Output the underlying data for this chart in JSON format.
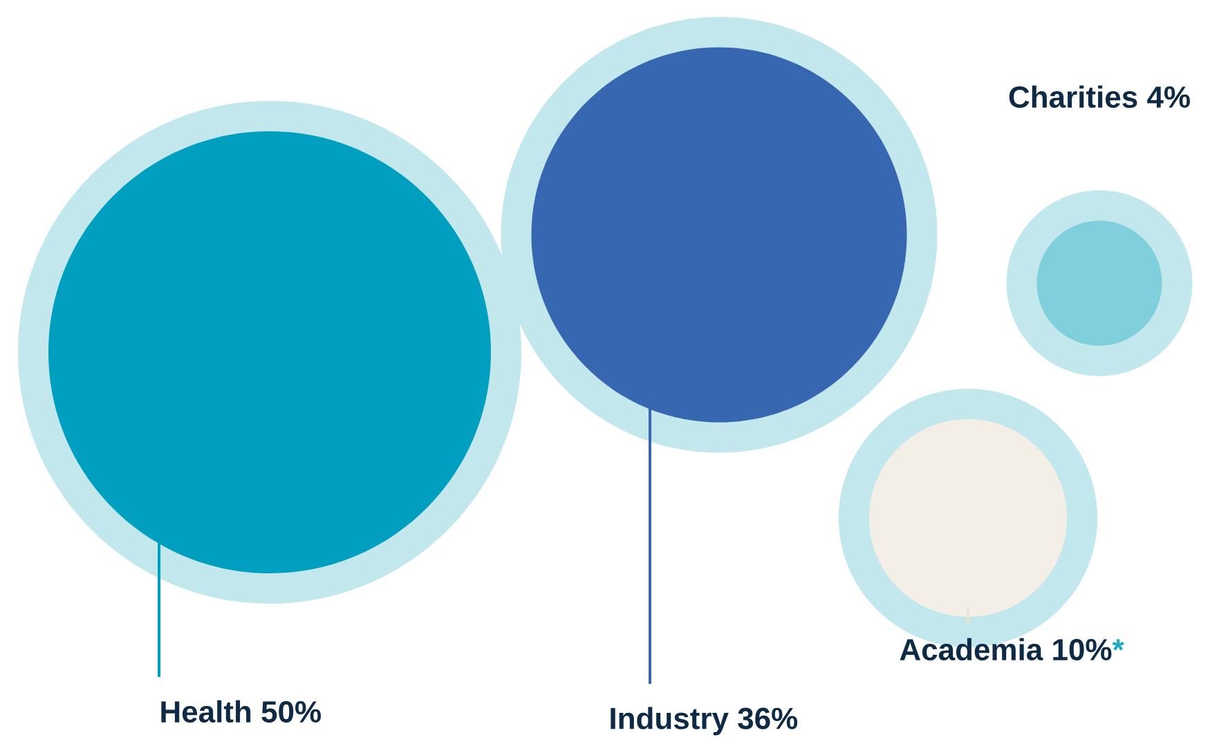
{
  "chart_data": {
    "type": "other",
    "categories": [
      "Health",
      "Industry",
      "Academia",
      "Charities"
    ],
    "values": [
      50,
      36,
      10,
      4
    ],
    "value_labels": [
      "50%",
      "36%",
      "10%",
      "4%"
    ],
    "colors": [
      "#009fbf",
      "#3767b0",
      "#f3efe7",
      "#7fcfdd"
    ],
    "annotations": [
      "*"
    ]
  }
}
